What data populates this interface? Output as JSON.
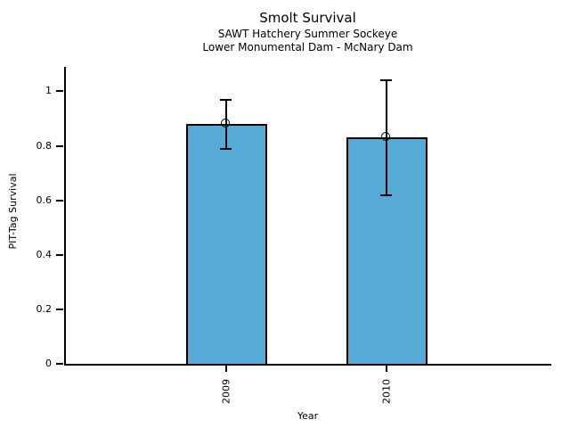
{
  "chart_data": {
    "type": "bar",
    "title": "Smolt Survival",
    "subtitles": [
      "SAWT Hatchery Summer Sockeye",
      "Lower Monumental Dam - McNary Dam"
    ],
    "categories": [
      "2009",
      "2010"
    ],
    "values": [
      0.88,
      0.83
    ],
    "error_low": [
      0.79,
      0.62
    ],
    "error_high": [
      0.97,
      1.04
    ],
    "xlabel": "Year",
    "ylabel": "PIT-Tag Survival",
    "ylim": [
      0,
      1.09
    ],
    "yticks": [
      0,
      0.2,
      0.4,
      0.6,
      0.8,
      1
    ],
    "ytick_labels": [
      "0",
      "0.2",
      "0.4",
      "0.6",
      "0.8",
      "1"
    ],
    "xtick_label_rotation": 90,
    "grid": false,
    "legend": "none",
    "bar_color": "#56abd6",
    "bar_edge_color": "#000000",
    "error_bar_color": "#000000",
    "marker": "open-circle"
  }
}
